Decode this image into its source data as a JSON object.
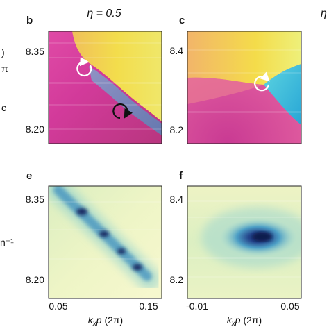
{
  "figure": {
    "column_titles": [
      "η = 0.5",
      "η"
    ],
    "panels": {
      "b": {
        "letter": "b",
        "y_ticks": [
          "8.35",
          "8.20"
        ]
      },
      "c": {
        "letter": "c",
        "y_ticks": [
          "8.4",
          "8.2"
        ]
      },
      "e": {
        "letter": "e",
        "y_ticks": [
          "8.35",
          "8.20"
        ],
        "x_ticks": [
          "0.05",
          "0.15"
        ],
        "x_label": "kxp (2π)"
      },
      "f": {
        "letter": "f",
        "y_ticks": [
          "8.4",
          "8.2"
        ],
        "x_ticks": [
          "-0.01",
          "0.05"
        ],
        "x_label": "kxp (2π)"
      }
    },
    "left_edge_fragments": [
      ")",
      "π",
      "c",
      "n⁻¹"
    ],
    "colors": {
      "phase_magenta": "#d63a9a",
      "phase_yellow": "#f2e14a",
      "phase_cyan": "#2fb6d8",
      "intensity_low": "#f4f6c8",
      "intensity_high": "#1a2d6e",
      "vortex_white": "#ffffff",
      "vortex_black": "#111111"
    },
    "icons": [
      "clockwise-vortex-icon",
      "counterclockwise-vortex-icon"
    ]
  }
}
